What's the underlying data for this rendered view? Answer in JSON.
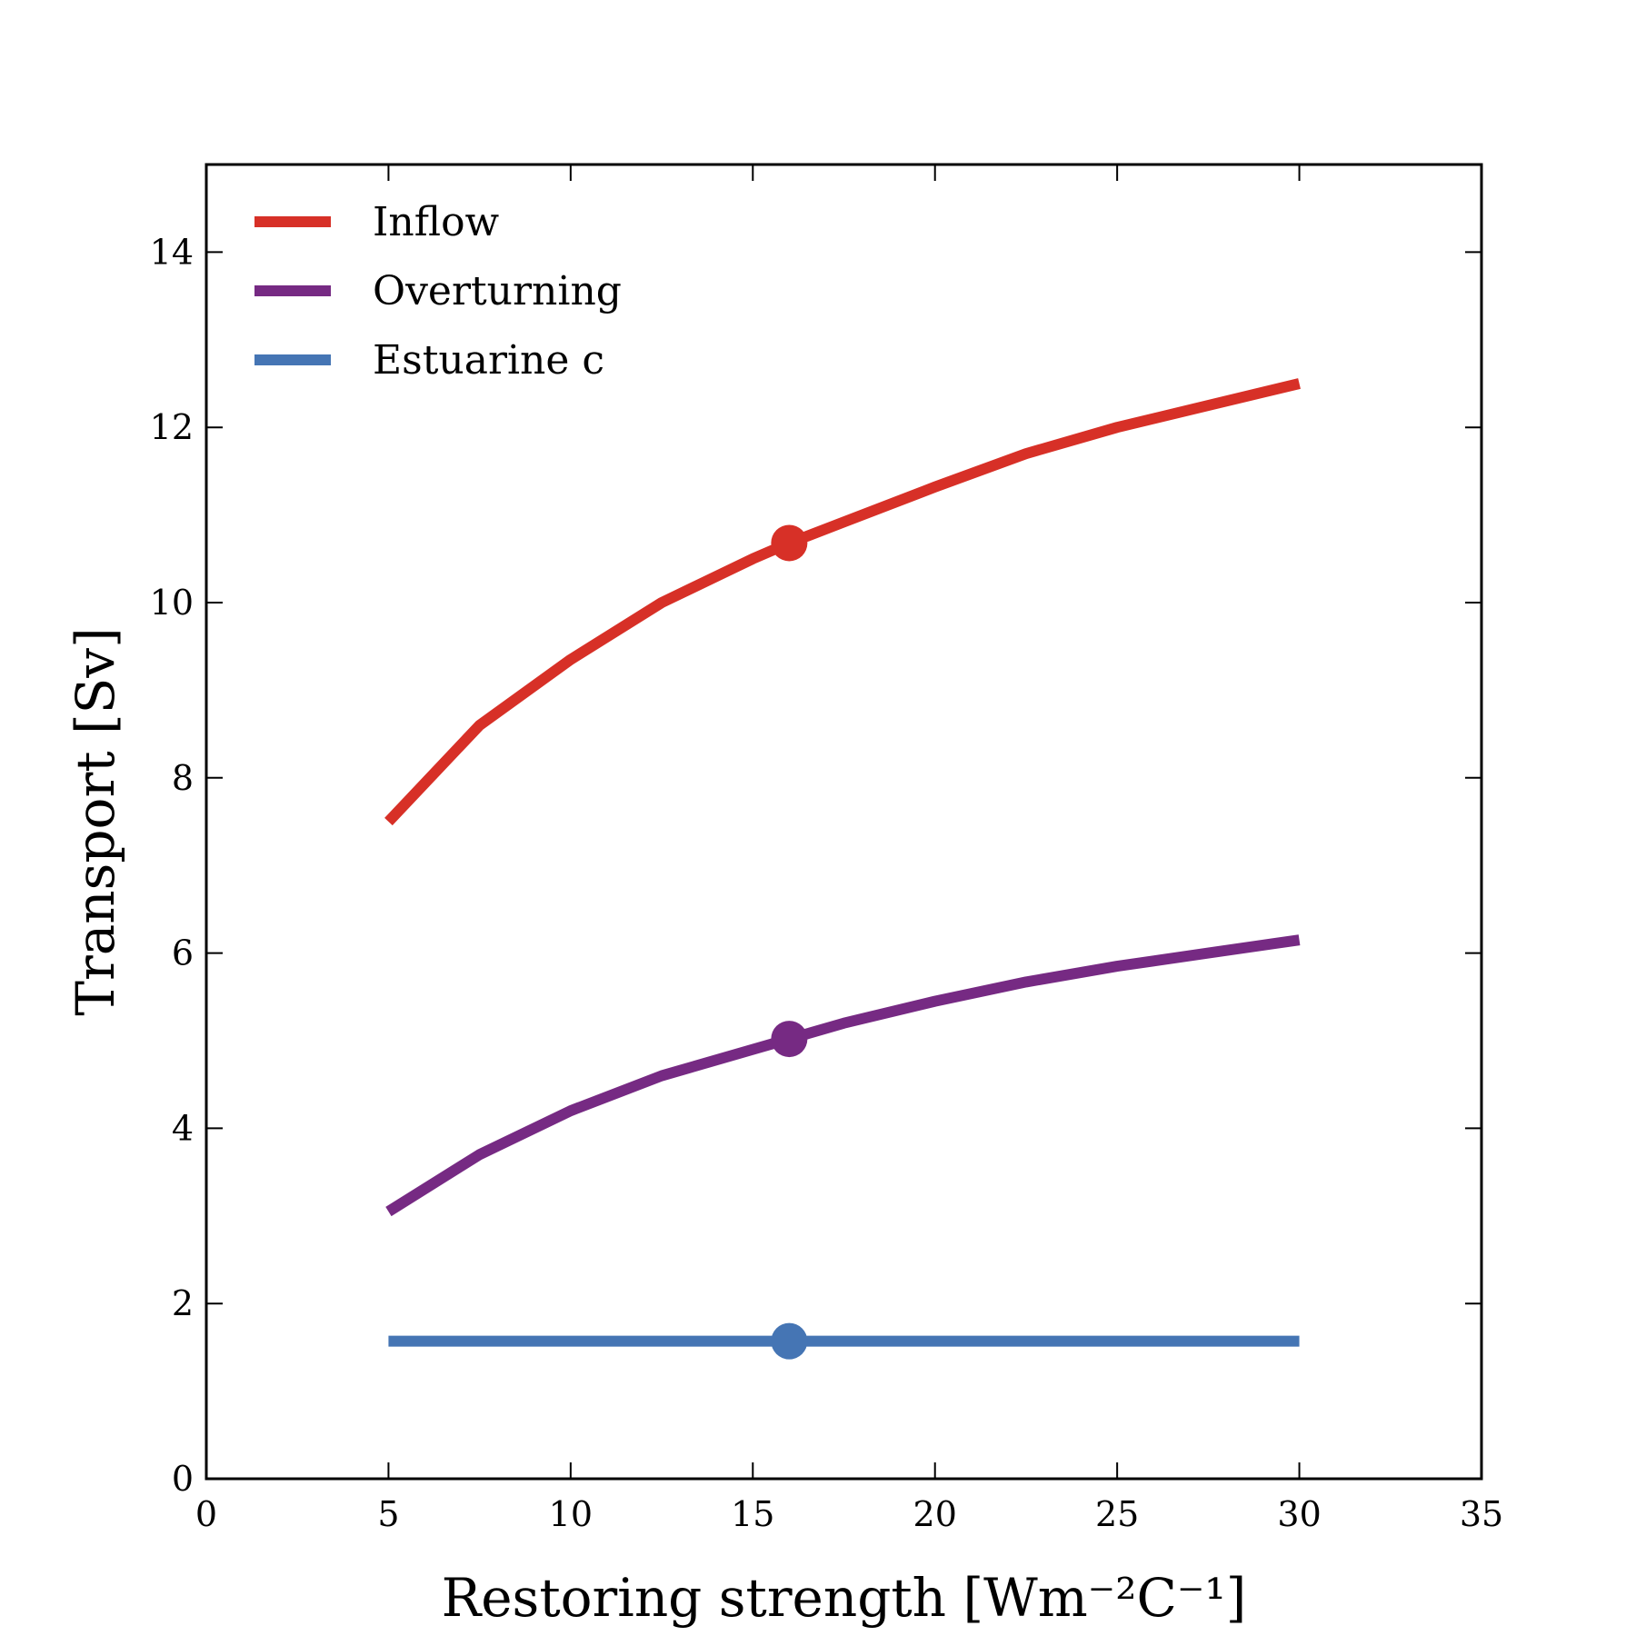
{
  "chart_data": {
    "type": "line",
    "title": "",
    "xlabel": "Restoring strength [Wm⁻²C⁻¹]",
    "ylabel": "Transport [Sv]",
    "xlim": [
      0,
      35
    ],
    "ylim": [
      0,
      15
    ],
    "xticks": [
      0,
      5,
      10,
      15,
      20,
      25,
      30,
      35
    ],
    "yticks": [
      0,
      2,
      4,
      6,
      8,
      10,
      12,
      14
    ],
    "grid": false,
    "legend_position": "top-left",
    "series": [
      {
        "name": "Inflow",
        "color": "#d73027",
        "x": [
          5,
          7.5,
          10,
          12.5,
          15,
          16,
          17.5,
          20,
          22.5,
          25,
          27.5,
          30
        ],
        "y": [
          7.5,
          8.6,
          9.35,
          10.0,
          10.5,
          10.68,
          10.92,
          11.32,
          11.7,
          12.0,
          12.25,
          12.5
        ],
        "marker": {
          "x": 16,
          "y": 10.68
        }
      },
      {
        "name": "Overturning",
        "color": "#762a83",
        "x": [
          5,
          7.5,
          10,
          12.5,
          15,
          16,
          17.5,
          20,
          22.5,
          25,
          27.5,
          30
        ],
        "y": [
          3.05,
          3.7,
          4.2,
          4.6,
          4.9,
          5.02,
          5.2,
          5.45,
          5.67,
          5.85,
          6.0,
          6.15
        ],
        "marker": {
          "x": 16,
          "y": 5.02
        }
      },
      {
        "name": "Estuarine c",
        "color": "#4575b4",
        "x": [
          5,
          30
        ],
        "y": [
          1.57,
          1.57
        ],
        "marker": {
          "x": 16,
          "y": 1.57
        }
      }
    ]
  }
}
